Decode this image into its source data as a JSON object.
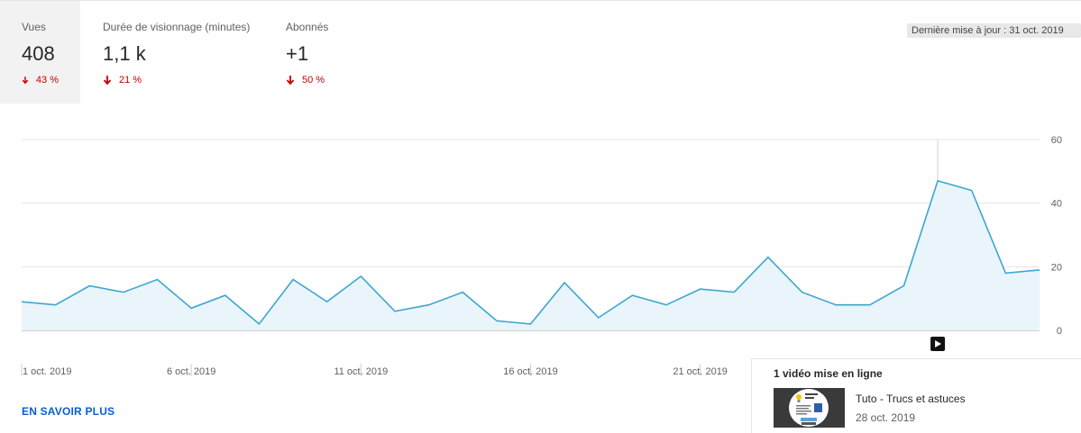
{
  "metrics": [
    {
      "label": "Vues",
      "value": "408",
      "delta": "43 %"
    },
    {
      "label": "Durée de visionnage (minutes)",
      "value": "1,1 k",
      "delta": "21 %"
    },
    {
      "label": "Abonnés",
      "value": "+1",
      "delta": "50 %"
    }
  ],
  "updated": "Dernière mise à jour : 31 oct. 2019",
  "learn_more": "EN SAVOIR PLUS",
  "upload": {
    "title": "1 vidéo mise en ligne",
    "video_title": "Tuto - Trucs et astuces",
    "video_date": "28 oct. 2019"
  },
  "colors": {
    "line": "#3ea6cf",
    "fill": "#e9f5fb",
    "negative": "#cc0000",
    "link": "#065fd4"
  },
  "chart_data": {
    "type": "area",
    "x": [
      "2019-10-01",
      "2019-10-02",
      "2019-10-03",
      "2019-10-04",
      "2019-10-05",
      "2019-10-06",
      "2019-10-07",
      "2019-10-08",
      "2019-10-09",
      "2019-10-10",
      "2019-10-11",
      "2019-10-12",
      "2019-10-13",
      "2019-10-14",
      "2019-10-15",
      "2019-10-16",
      "2019-10-17",
      "2019-10-18",
      "2019-10-19",
      "2019-10-20",
      "2019-10-21",
      "2019-10-22",
      "2019-10-23",
      "2019-10-24",
      "2019-10-25",
      "2019-10-26",
      "2019-10-27",
      "2019-10-28",
      "2019-10-29",
      "2019-10-30",
      "2019-10-31"
    ],
    "y": [
      9,
      8,
      14,
      12,
      16,
      7,
      11,
      2,
      16,
      9,
      17,
      6,
      8,
      12,
      3,
      2,
      15,
      4,
      11,
      8,
      13,
      12,
      23,
      12,
      8,
      8,
      14,
      47,
      44,
      18,
      19
    ],
    "x_ticks": [
      "1 oct. 2019",
      "6 oct. 2019",
      "11 oct. 2019",
      "16 oct. 2019",
      "21 oct. 2019"
    ],
    "y_ticks": [
      "60",
      "40",
      "20",
      "0"
    ],
    "ylim": [
      0,
      60
    ],
    "grid": true,
    "marker_date": "2019-10-28"
  }
}
